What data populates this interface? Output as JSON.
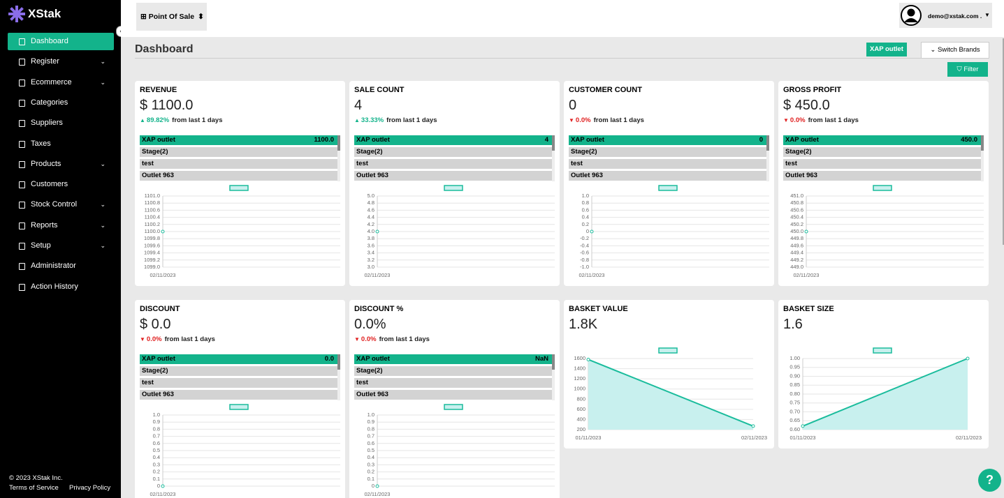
{
  "sidebar": {
    "brand": "XStak",
    "nav": [
      {
        "label": "Dashboard",
        "active": true
      },
      {
        "label": "Register",
        "expandable": true
      },
      {
        "label": "Ecommerce",
        "expandable": true
      },
      {
        "label": "Categories"
      },
      {
        "label": "Suppliers"
      },
      {
        "label": "Taxes"
      },
      {
        "label": "Products",
        "expandable": true
      },
      {
        "label": "Customers"
      },
      {
        "label": "Stock Control",
        "expandable": true
      },
      {
        "label": "Reports",
        "expandable": true
      },
      {
        "label": "Setup",
        "expandable": true
      },
      {
        "label": "Administrator"
      },
      {
        "label": "Action History"
      }
    ],
    "copyright": "© 2023 XStak Inc.",
    "links": [
      "Terms of Service",
      "Privacy Policy"
    ]
  },
  "topbar": {
    "app": "Point Of Sale",
    "user": "demo@xstak.com ."
  },
  "page": {
    "title": "Dashboard",
    "outlet": "XAP outlet",
    "switch": "Switch Brands",
    "filter": "Filter",
    "help": "?"
  },
  "cards": [
    {
      "title": "REVENUE",
      "value": "$ 1100.0",
      "change": "89.82%",
      "direction": "up",
      "period": "from last 1 days",
      "outlets": [
        {
          "name": "XAP outlet",
          "value": "1100.0"
        },
        {
          "name": "Stage(2)"
        },
        {
          "name": "test"
        },
        {
          "name": "Outlet 963"
        }
      ],
      "chart": {
        "type": "line",
        "x": [
          "02/11/2023"
        ],
        "values": [
          1100
        ],
        "ylim": [
          1099,
          1101
        ],
        "yticks": [
          {
            "value": 1101,
            "label": "1101.0"
          },
          1100.8,
          1100.6,
          1100.4,
          1100.2,
          {
            "value": 1100,
            "label": "1100.0"
          },
          1099.8,
          1099.6,
          1099.4,
          1099.2,
          {
            "value": 1099,
            "label": "1099.0"
          }
        ],
        "color": "#1abc9c"
      }
    },
    {
      "title": "SALE COUNT",
      "value": "4",
      "change": "33.33%",
      "direction": "up",
      "period": "from last 1 days",
      "outlets": [
        {
          "name": "XAP outlet",
          "value": "4"
        },
        {
          "name": "Stage(2)"
        },
        {
          "name": "test"
        },
        {
          "name": "Outlet 963"
        }
      ],
      "chart": {
        "type": "line",
        "x": [
          "02/11/2023"
        ],
        "values": [
          4
        ],
        "ylim": [
          3,
          5
        ],
        "yticks": [
          {
            "value": 5,
            "label": "5.0"
          },
          4.8,
          4.6,
          4.4,
          4.2,
          {
            "value": 4,
            "label": "4.0"
          },
          3.8,
          3.6,
          3.4,
          3.2,
          {
            "value": 3,
            "label": "3.0"
          }
        ],
        "color": "#1abc9c"
      }
    },
    {
      "title": "CUSTOMER COUNT",
      "value": "0",
      "change": "0.0%",
      "direction": "down",
      "period": "from last 1 days",
      "outlets": [
        {
          "name": "XAP outlet",
          "value": "0"
        },
        {
          "name": "Stage(2)"
        },
        {
          "name": "test"
        },
        {
          "name": "Outlet 963"
        }
      ],
      "chart": {
        "type": "line",
        "x": [
          "02/11/2023"
        ],
        "values": [
          0
        ],
        "ylim": [
          -1,
          1
        ],
        "yticks": [
          {
            "value": 1,
            "label": "1.0"
          },
          0.8,
          0.6,
          0.4,
          0.2,
          0,
          -0.2,
          -0.4,
          -0.6,
          -0.8,
          {
            "value": -1,
            "label": "-1.0"
          }
        ],
        "color": "#1abc9c"
      }
    },
    {
      "title": "GROSS PROFIT",
      "value": "$ 450.0",
      "change": "0.0%",
      "direction": "down",
      "period": "from last 1 days",
      "outlets": [
        {
          "name": "XAP outlet",
          "value": "450.0"
        },
        {
          "name": "Stage(2)"
        },
        {
          "name": "test"
        },
        {
          "name": "Outlet 963"
        }
      ],
      "chart": {
        "type": "line",
        "x": [
          "02/11/2023"
        ],
        "values": [
          450
        ],
        "ylim": [
          449,
          451
        ],
        "yticks": [
          {
            "value": 451,
            "label": "451.0"
          },
          450.8,
          450.6,
          450.4,
          450.2,
          {
            "value": 450,
            "label": "450.0"
          },
          449.8,
          449.6,
          449.4,
          449.2,
          {
            "value": 449,
            "label": "449.0"
          }
        ],
        "color": "#1abc9c"
      }
    },
    {
      "title": "DISCOUNT",
      "value": "$ 0.0",
      "change": "0.0%",
      "direction": "down",
      "period": "from last 1 days",
      "outlets": [
        {
          "name": "XAP outlet",
          "value": "0.0"
        },
        {
          "name": "Stage(2)"
        },
        {
          "name": "test"
        },
        {
          "name": "Outlet 963"
        }
      ],
      "chart": {
        "type": "line",
        "x": [
          "02/11/2023"
        ],
        "values": [
          0
        ],
        "ylim": [
          0,
          1
        ],
        "yticks": [
          {
            "value": 1,
            "label": "1.0"
          },
          0.9,
          0.8,
          0.7,
          0.6,
          0.5,
          0.4,
          0.3,
          0.2,
          0.1,
          0
        ],
        "color": "#1abc9c"
      }
    },
    {
      "title": "DISCOUNT %",
      "value": "0.0%",
      "change": "0.0%",
      "direction": "down",
      "period": "from last 1 days",
      "outlets": [
        {
          "name": "XAP outlet",
          "value": "NaN"
        },
        {
          "name": "Stage(2)"
        },
        {
          "name": "test"
        },
        {
          "name": "Outlet 963"
        }
      ],
      "chart": {
        "type": "line",
        "x": [
          "02/11/2023"
        ],
        "values": [
          0
        ],
        "ylim": [
          0,
          1
        ],
        "yticks": [
          {
            "value": 1,
            "label": "1.0"
          },
          0.9,
          0.8,
          0.7,
          0.6,
          0.5,
          0.4,
          0.3,
          0.2,
          0.1,
          0
        ],
        "color": "#1abc9c"
      }
    },
    {
      "title": "BASKET VALUE",
      "value": "1.8K",
      "chart": {
        "type": "area",
        "x": [
          "01/11/2023",
          "02/11/2023"
        ],
        "values": [
          1580,
          270
        ],
        "ylim": [
          200,
          1600
        ],
        "yticks": [
          1600,
          1400,
          1200,
          1000,
          800,
          600,
          400,
          200
        ],
        "color": "#1abc9c"
      }
    },
    {
      "title": "BASKET SIZE",
      "value": "1.6",
      "chart": {
        "type": "area",
        "x": [
          "01/11/2023",
          "02/11/2023"
        ],
        "values": [
          0.62,
          1.0
        ],
        "ylim": [
          0.6,
          1.0
        ],
        "yticks": [
          {
            "value": 1,
            "label": "1.00"
          },
          0.95,
          {
            "value": 0.9,
            "label": "0.90"
          },
          0.85,
          {
            "value": 0.8,
            "label": "0.80"
          },
          0.75,
          {
            "value": 0.7,
            "label": "0.70"
          },
          0.65,
          {
            "value": 0.6,
            "label": "0.60"
          }
        ],
        "color": "#1abc9c"
      }
    }
  ]
}
